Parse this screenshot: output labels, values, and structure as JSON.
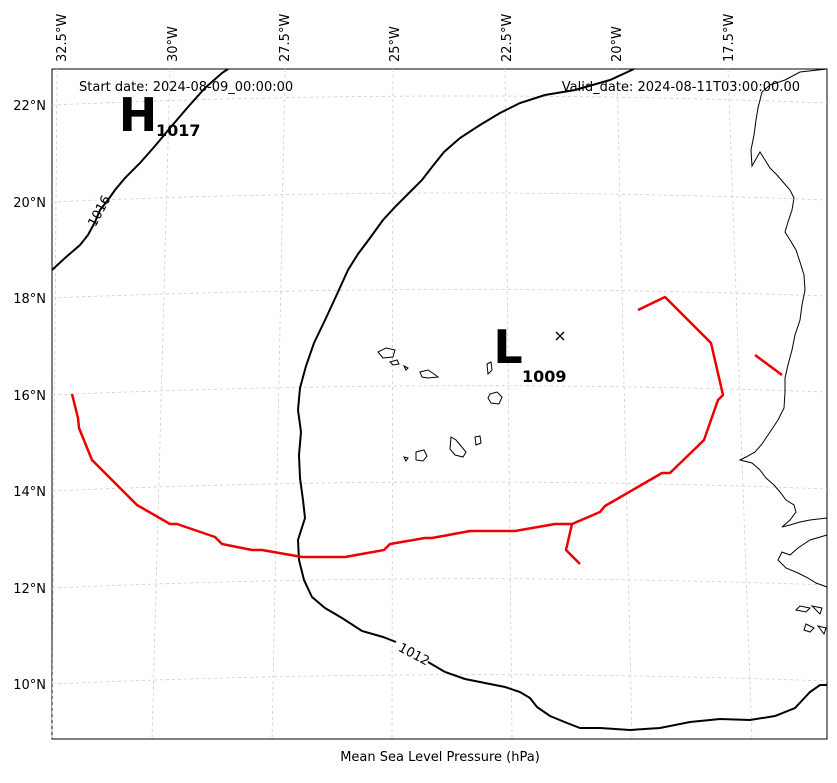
{
  "header": {
    "start_date": "Start date: 2024-08-09_00:00:00",
    "valid_date": "Valid_date: 2024-08-11T03:00:00.00"
  },
  "xlabel": "Mean Sea Level Pressure (hPa)",
  "lon_ticks": [
    "32.5°W",
    "30°W",
    "27.5°W",
    "25°W",
    "22.5°W",
    "20°W",
    "17.5°W"
  ],
  "lat_ticks": [
    "22°N",
    "20°N",
    "18°N",
    "16°N",
    "14°N",
    "12°N",
    "10°N"
  ],
  "pressure_centers": [
    {
      "type": "H",
      "value": "1017"
    },
    {
      "type": "L",
      "value": "1009"
    }
  ],
  "isobar_labels": [
    "1016",
    "1012"
  ],
  "colors": {
    "isobar": "#000000",
    "trough": "#ee0000",
    "grid": "#cccccc"
  }
}
